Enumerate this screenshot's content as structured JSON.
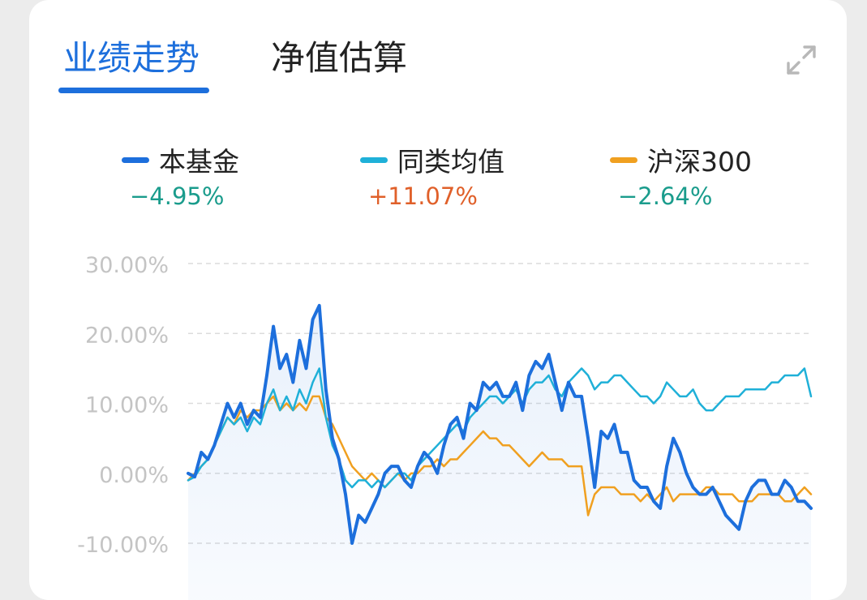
{
  "tabs": [
    {
      "label": "业绩走势",
      "active": true
    },
    {
      "label": "净值估算",
      "active": false
    }
  ],
  "icons": {
    "expand": "expand-icon"
  },
  "colors": {
    "accent": "#1d6fdc",
    "negative": "#1a9c8c",
    "positive": "#e0602a"
  },
  "legend": [
    {
      "name": "本基金",
      "value": "−4.95%",
      "color": "#1d6fdc",
      "value_color": "#1a9c8c"
    },
    {
      "name": "同类均值",
      "value": "+11.07%",
      "color": "#1fb0d8",
      "value_color": "#e0602a"
    },
    {
      "name": "沪深300",
      "value": "−2.64%",
      "color": "#f0a020",
      "value_color": "#1a9c8c"
    }
  ],
  "chart_data": {
    "type": "line",
    "grid": true,
    "ylim": [
      -10,
      30
    ],
    "y_ticks": [
      {
        "value": 30,
        "label": "30.00%"
      },
      {
        "value": 20,
        "label": "20.00%"
      },
      {
        "value": 10,
        "label": "10.00%"
      },
      {
        "value": 0,
        "label": "0.00%"
      },
      {
        "value": -10,
        "label": "-10.00%"
      }
    ],
    "series": [
      {
        "name": "本基金",
        "color": "#1d6fdc",
        "area": true,
        "values": [
          0,
          -0.5,
          3,
          2,
          4,
          7,
          10,
          8,
          10,
          7,
          9,
          8,
          14,
          21,
          15,
          17,
          13,
          19,
          15,
          22,
          24,
          12,
          5,
          2,
          -3,
          -10,
          -6,
          -7,
          -5,
          -3,
          0,
          1,
          1,
          -1,
          -2,
          1,
          3,
          2,
          0,
          4,
          7,
          8,
          5,
          10,
          9,
          13,
          12,
          13,
          11,
          11,
          13,
          9,
          14,
          16,
          15,
          17,
          13,
          9,
          13,
          11,
          11,
          5,
          -2,
          6,
          5,
          7,
          3,
          3,
          -1,
          -2,
          -2,
          -4,
          -5,
          1,
          5,
          3,
          0,
          -2,
          -3,
          -3,
          -2,
          -4,
          -6,
          -7,
          -8,
          -4,
          -2,
          -1,
          -1,
          -3,
          -3,
          -1,
          -2,
          -4,
          -4,
          -5
        ]
      },
      {
        "name": "同类均值",
        "color": "#1fb0d8",
        "area": false,
        "values": [
          -1,
          -0.5,
          1,
          2,
          4,
          6,
          8,
          7,
          8,
          6,
          8,
          7,
          10,
          12,
          9,
          11,
          9,
          12,
          10,
          13,
          15,
          8,
          4,
          2,
          -1,
          -2,
          -1,
          -1,
          -2,
          -1,
          -2,
          -1,
          0,
          0,
          -1,
          1,
          2,
          3,
          4,
          5,
          6,
          7,
          6,
          8,
          9,
          10,
          11,
          11,
          10,
          11,
          12,
          10,
          12,
          13,
          13,
          14,
          12,
          11,
          13,
          14,
          15,
          14,
          12,
          13,
          13,
          14,
          14,
          13,
          12,
          11,
          11,
          10,
          11,
          13,
          12,
          11,
          11,
          12,
          10,
          9,
          9,
          10,
          11,
          11,
          11,
          12,
          12,
          12,
          12,
          13,
          13,
          14,
          14,
          14,
          15,
          11
        ]
      },
      {
        "name": "沪深300",
        "color": "#f0a020",
        "area": false,
        "values": [
          -1,
          0,
          1,
          2,
          4,
          6,
          8,
          7,
          9,
          8,
          9,
          9,
          10,
          11,
          9,
          10,
          9,
          10,
          9,
          11,
          11,
          8,
          7,
          5,
          3,
          1,
          0,
          -1,
          0,
          -1,
          -2,
          -1,
          0,
          -1,
          0,
          0,
          1,
          1,
          2,
          1,
          2,
          2,
          3,
          4,
          5,
          6,
          5,
          5,
          4,
          4,
          3,
          2,
          1,
          2,
          3,
          2,
          2,
          2,
          1,
          1,
          1,
          -6,
          -3,
          -2,
          -2,
          -2,
          -3,
          -3,
          -3,
          -4,
          -3,
          -4,
          -3,
          -2,
          -4,
          -3,
          -3,
          -3,
          -3,
          -2,
          -2,
          -3,
          -3,
          -3,
          -4,
          -4,
          -4,
          -3,
          -3,
          -3,
          -3,
          -4,
          -4,
          -3,
          -2,
          -3
        ]
      }
    ]
  }
}
